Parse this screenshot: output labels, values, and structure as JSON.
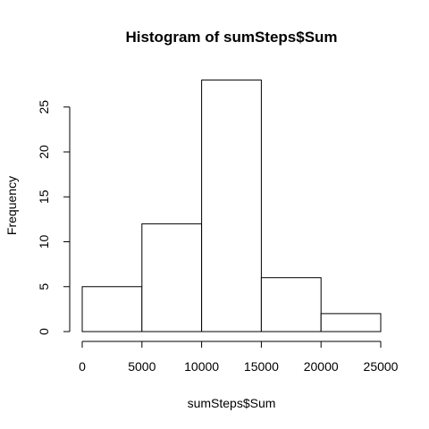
{
  "chart_data": {
    "type": "bar",
    "title": "Histogram of sumSteps$Sum",
    "xlabel": "sumSteps$Sum",
    "ylabel": "Frequency",
    "bins": [
      {
        "start": 0,
        "end": 5000,
        "count": 5
      },
      {
        "start": 5000,
        "end": 10000,
        "count": 12
      },
      {
        "start": 10000,
        "end": 15000,
        "count": 28
      },
      {
        "start": 15000,
        "end": 20000,
        "count": 6
      },
      {
        "start": 20000,
        "end": 25000,
        "count": 2
      }
    ],
    "xlim": [
      0,
      25000
    ],
    "ylim": [
      0,
      28
    ],
    "xticks": [
      0,
      5000,
      10000,
      15000,
      20000,
      25000
    ],
    "yticks": [
      0,
      5,
      10,
      15,
      20,
      25
    ],
    "grid": false
  }
}
